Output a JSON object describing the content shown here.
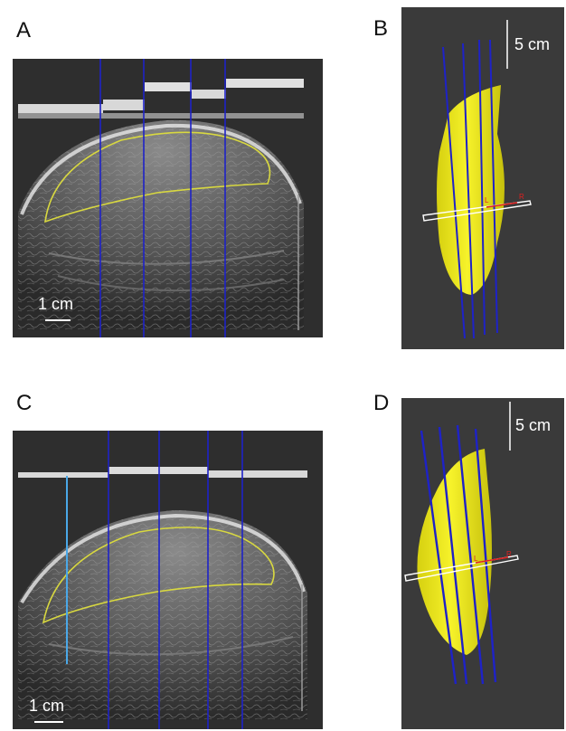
{
  "figure": {
    "panels": [
      {
        "label": "A",
        "scale_label": "1 cm"
      },
      {
        "label": "B",
        "scale_label": "5 cm",
        "axis_markers": [
          "L",
          "R"
        ]
      },
      {
        "label": "C",
        "scale_label": "1 cm"
      },
      {
        "label": "D",
        "scale_label": "5 cm",
        "axis_markers": [
          "L",
          "R"
        ]
      }
    ],
    "colors": {
      "ultrasound_bg": "#2e2e2e",
      "render_bg": "#3a3a3a",
      "sweep_lines": "#1e22c8",
      "outline": "#d8d840",
      "volume": "#f2ef1e",
      "marker": "#e02020",
      "highlight_line": "#4aa8e8"
    }
  }
}
